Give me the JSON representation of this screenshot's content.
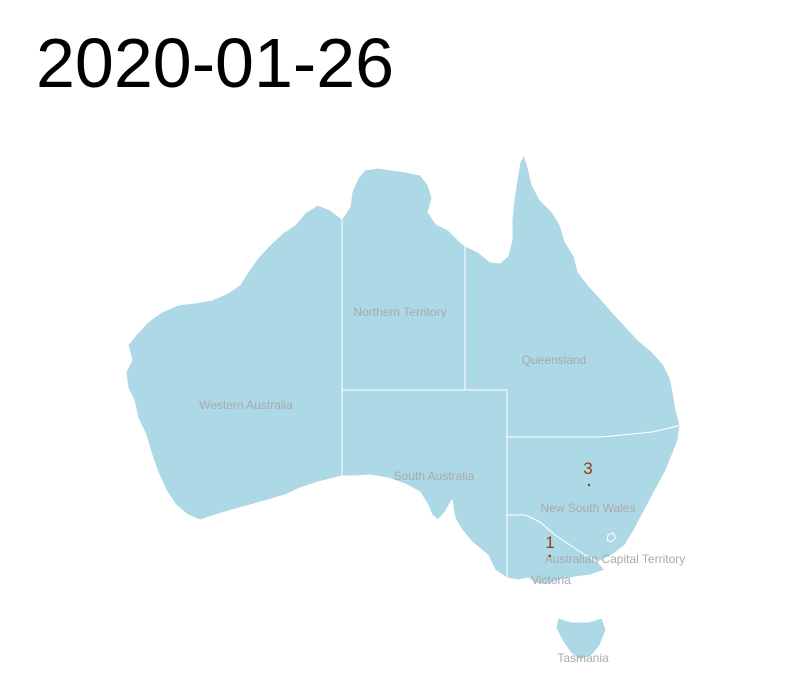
{
  "title": "2020-01-26",
  "colors": {
    "land": "#add8e6",
    "border": "#ffffff",
    "state_label": "#a9a9a9",
    "count_label": "#8b4513"
  },
  "states": {
    "wa": {
      "name": "Western Australia"
    },
    "nt": {
      "name": "Northern Territory"
    },
    "qld": {
      "name": "Queensland"
    },
    "sa": {
      "name": "South Australia"
    },
    "nsw": {
      "name": "New South Wales"
    },
    "act": {
      "name": "Australian Capital Territory"
    },
    "vic": {
      "name": "Victoria"
    },
    "tas": {
      "name": "Tasmania"
    }
  },
  "case_counts": {
    "nsw": "3",
    "vic": "1"
  }
}
